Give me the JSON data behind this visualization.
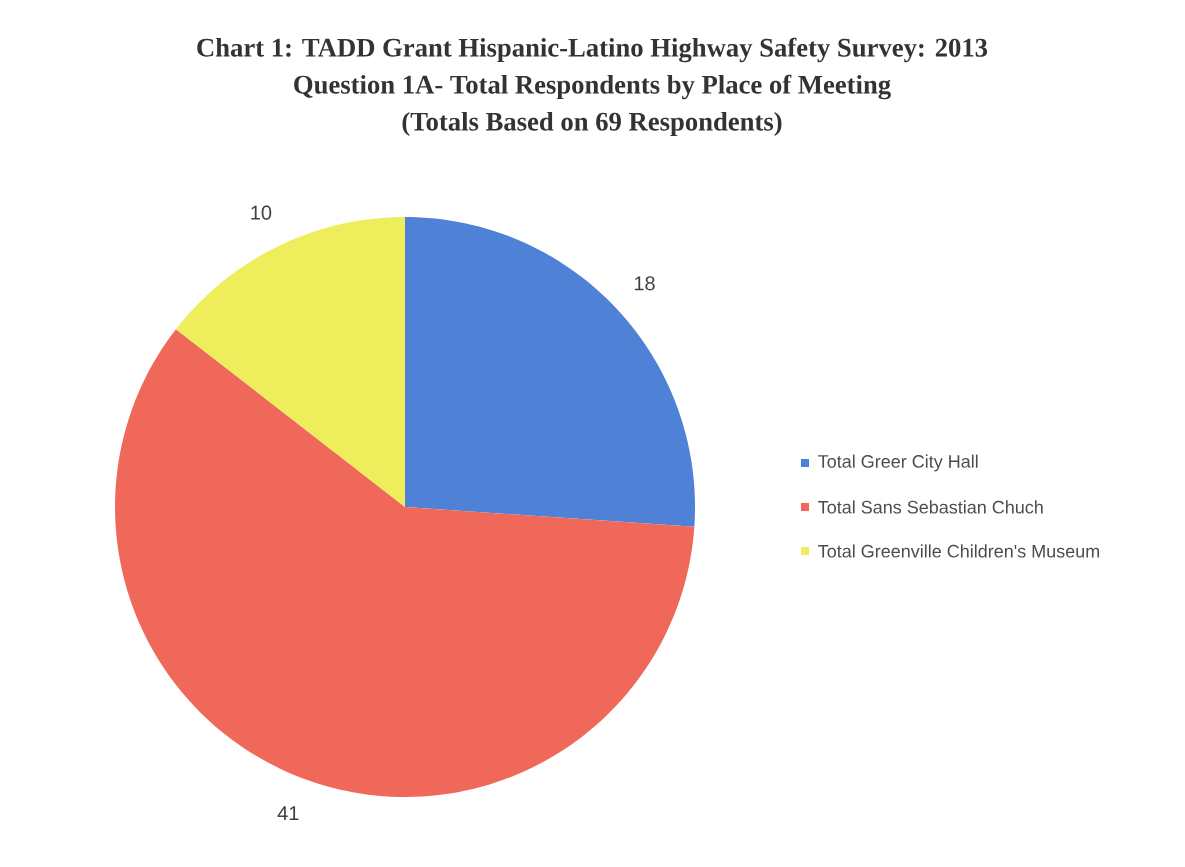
{
  "chart_data": {
    "type": "pie",
    "title": "Chart 1: TADD Grant Hispanic-Latino Highway Safety Survey: 2013",
    "subtitle": "Question 1A- Total Respondents by Place of Meeting",
    "annotations": [
      "(Totals Based on 69 Respondents)"
    ],
    "categories": [
      "Total Greer City Hall",
      "Total Sans Sebastian Chuch",
      "Total Greenville Children's Museum"
    ],
    "values": [
      18,
      41,
      10
    ],
    "colors": [
      "#4f81d6",
      "#f0685a",
      "#eeee5c"
    ],
    "data_labels": true,
    "legend": "right"
  }
}
